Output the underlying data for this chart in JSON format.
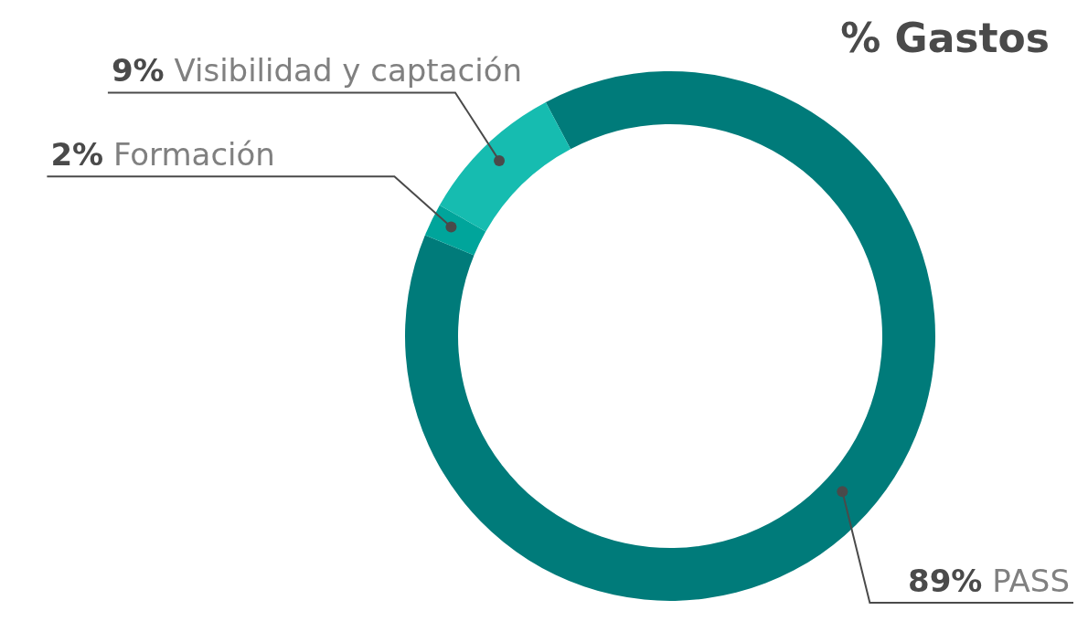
{
  "chart_data": {
    "type": "donut",
    "title": "% Gastos",
    "categories": [
      "PASS",
      "Formación",
      "Visibilidad y captación"
    ],
    "values": [
      89,
      2,
      9
    ],
    "colors": [
      "#007b7a",
      "#00a59b",
      "#16bcb0"
    ],
    "value_labels": [
      "89%",
      "2%",
      "9%"
    ]
  }
}
